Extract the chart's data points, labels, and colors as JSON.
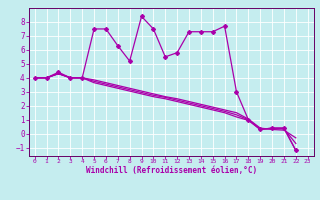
{
  "xlabel": "Windchill (Refroidissement éolien,°C)",
  "background_color": "#c5edef",
  "line_color": "#aa00aa",
  "grid_color": "#ffffff",
  "spine_color": "#660066",
  "x_values": [
    0,
    1,
    2,
    3,
    4,
    5,
    6,
    7,
    8,
    9,
    10,
    11,
    12,
    13,
    14,
    15,
    16,
    17,
    18,
    19,
    20,
    21,
    22,
    23
  ],
  "series1": [
    4.0,
    4.0,
    4.4,
    4.0,
    4.0,
    7.5,
    7.5,
    6.3,
    5.2,
    8.4,
    7.5,
    5.5,
    5.8,
    7.3,
    7.3,
    7.3,
    7.7,
    3.0,
    1.0,
    0.3,
    0.4,
    0.4,
    -1.2,
    null
  ],
  "series2": [
    4.0,
    4.0,
    4.3,
    4.0,
    4.0,
    3.85,
    3.65,
    3.45,
    3.25,
    3.05,
    2.85,
    2.65,
    2.5,
    2.3,
    2.1,
    1.9,
    1.7,
    1.5,
    1.05,
    0.4,
    0.3,
    0.25,
    -0.3,
    null
  ],
  "series3": [
    4.0,
    4.0,
    4.3,
    4.0,
    4.0,
    3.75,
    3.55,
    3.35,
    3.15,
    2.95,
    2.75,
    2.6,
    2.4,
    2.2,
    2.0,
    1.8,
    1.6,
    1.35,
    1.0,
    0.35,
    0.35,
    0.35,
    -0.7,
    null
  ],
  "series4": [
    4.0,
    4.0,
    4.3,
    4.0,
    4.0,
    3.65,
    3.45,
    3.25,
    3.05,
    2.85,
    2.65,
    2.5,
    2.3,
    2.1,
    1.9,
    1.7,
    1.5,
    1.2,
    0.95,
    0.3,
    0.4,
    0.4,
    -1.2,
    null
  ],
  "ylim": [
    -1.6,
    9.0
  ],
  "xlim": [
    -0.5,
    23.5
  ],
  "yticks": [
    -1,
    0,
    1,
    2,
    3,
    4,
    5,
    6,
    7,
    8
  ],
  "xticks": [
    0,
    1,
    2,
    3,
    4,
    5,
    6,
    7,
    8,
    9,
    10,
    11,
    12,
    13,
    14,
    15,
    16,
    17,
    18,
    19,
    20,
    21,
    22,
    23
  ]
}
